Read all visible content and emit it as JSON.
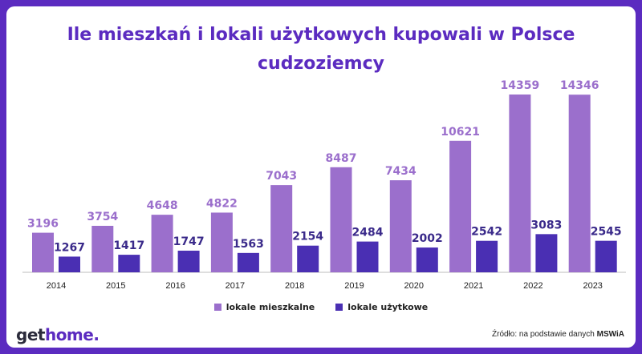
{
  "header": {
    "title_line1": "Ile mieszkań i lokali użytkowych kupowali w Polsce",
    "title_line2": "cudzoziemcy"
  },
  "chart_data": {
    "type": "bar",
    "categories": [
      "2014",
      "2015",
      "2016",
      "2017",
      "2018",
      "2019",
      "2020",
      "2021",
      "2022",
      "2023"
    ],
    "series": [
      {
        "name": "lokale mieszkalne",
        "color": "#9b6fcc",
        "values": [
          3196,
          3754,
          4648,
          4822,
          7043,
          8487,
          7434,
          10621,
          14359,
          14346
        ]
      },
      {
        "name": "lokale użytkowe",
        "color": "#4a2fb3",
        "values": [
          1267,
          1417,
          1747,
          1563,
          2154,
          2484,
          2002,
          2542,
          3083,
          2545
        ]
      }
    ],
    "label_colors": {
      "lokale mieszkalne": "#9b6fcc",
      "lokale użytkowe": "#3a2a8a"
    },
    "ylim": [
      0,
      14359
    ],
    "grid": false,
    "legend": "bottom-center"
  },
  "legend": {
    "item1": "lokale mieszkalne",
    "item2": "lokale użytkowe"
  },
  "footer": {
    "logo_get": "get",
    "logo_home": "home.",
    "source_prefix": "Źródło: na podstawie danych",
    "source_name": "MSWiA"
  }
}
